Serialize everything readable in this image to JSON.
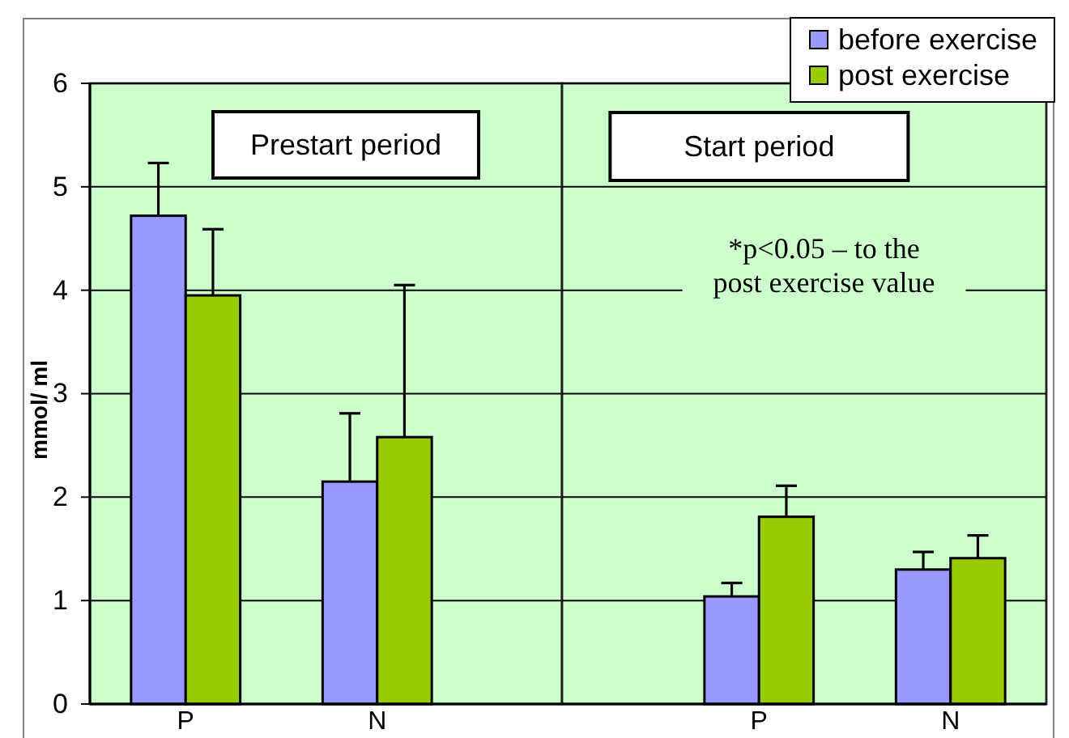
{
  "chart_data": [
    {
      "type": "bar",
      "title": "Prestart period",
      "categories": [
        "P",
        "N"
      ],
      "ylabel": "mmol/ ml",
      "ylim": [
        0,
        6
      ],
      "yticks": [
        0,
        1,
        2,
        3,
        4,
        5,
        6
      ],
      "grid": "y",
      "series": [
        {
          "color": "#9999ff",
          "values": [
            4.72,
            2.15
          ],
          "errors": [
            [
              4.72,
              5.23
            ],
            [
              2.15,
              2.81
            ]
          ]
        },
        {
          "color": "#99cc00",
          "values": [
            3.95,
            2.58
          ],
          "errors": [
            [
              3.95,
              4.59
            ],
            [
              2.58,
              4.05
            ]
          ]
        }
      ]
    },
    {
      "type": "bar",
      "title": "Start period",
      "categories": [
        "P",
        "N"
      ],
      "ylim": [
        0,
        6
      ],
      "yticks": [
        0,
        1,
        2,
        3,
        4,
        5,
        6
      ],
      "tick_labels": "x",
      "grid": "y",
      "legend": "top right",
      "series": [
        {
          "name": "before exercise",
          "color": "#9999ff",
          "values": [
            1.04,
            1.3
          ],
          "errors": [
            [
              1.04,
              1.17
            ],
            [
              1.3,
              1.47
            ]
          ]
        },
        {
          "name": "post exercise",
          "color": "#99cc00",
          "values": [
            1.81,
            1.41
          ],
          "errors": [
            [
              1.81,
              2.11
            ],
            [
              1.41,
              1.63
            ]
          ]
        }
      ],
      "annotations": [
        "*p<0.05 – to the post exercise value"
      ]
    }
  ]
}
